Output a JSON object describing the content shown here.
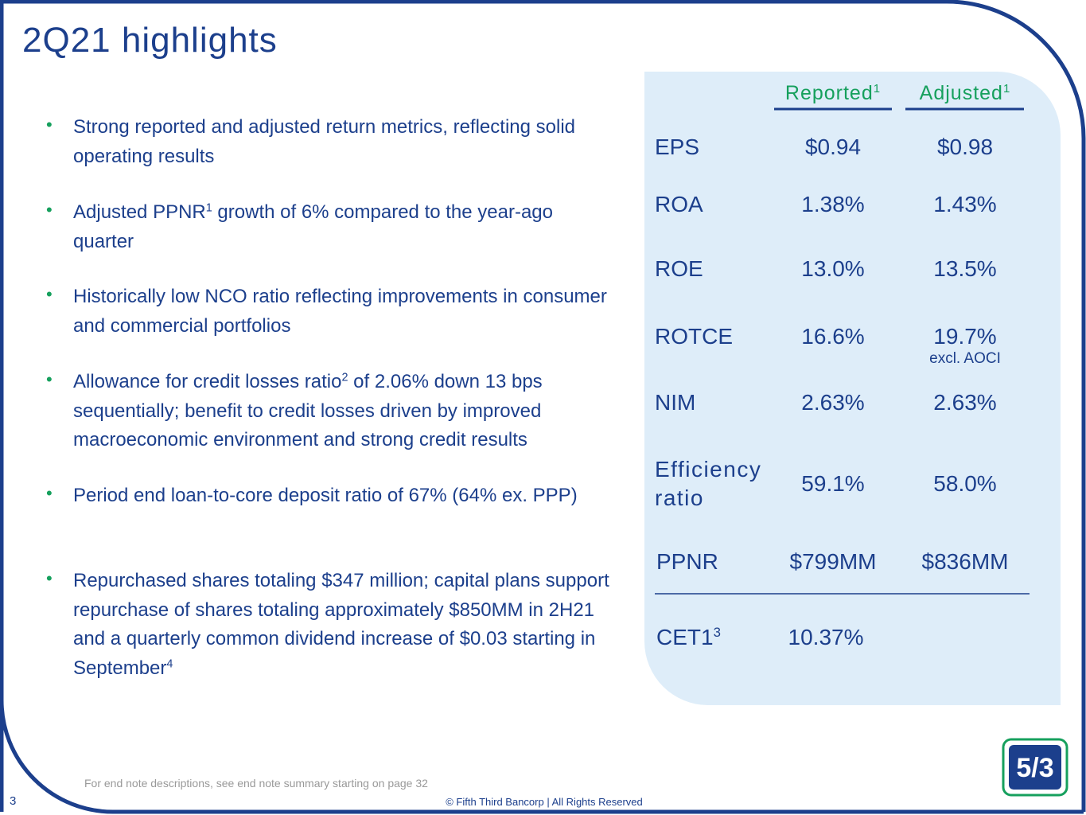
{
  "header": {
    "title": "2Q21 highlights"
  },
  "bullets": [
    [
      {
        "text": "Strong reported and adjusted return metrics, reflecting solid operating results"
      }
    ],
    [
      {
        "text": "Adjusted PPNR"
      },
      {
        "sup": "1"
      },
      {
        "text": " growth of 6% compared to the year-ago quarter"
      }
    ],
    [
      {
        "text": "Historically low NCO ratio reflecting improvements in consumer and commercial portfolios"
      }
    ],
    [
      {
        "text": "Allowance for credit losses ratio"
      },
      {
        "sup": "2"
      },
      {
        "text": " of 2.06% down 13 bps sequentially; benefit to credit losses driven by improved macroeconomic environment and strong credit results"
      }
    ],
    [
      {
        "text": "Period end loan-to-core deposit ratio of 67% (64% ex. PPP)"
      }
    ],
    [
      {
        "text": "Repurchased shares totaling $347 million; capital plans support repurchase of shares totaling approximately $850MM in 2H21 and a quarterly common dividend increase of $0.03 starting in September"
      },
      {
        "sup": "4"
      }
    ]
  ],
  "table": {
    "columns": [
      {
        "text": "Reported",
        "sup": "1"
      },
      {
        "text": "Adjusted",
        "sup": "1"
      }
    ],
    "rows": [
      {
        "label": "EPS",
        "reported": "$0.94",
        "adjusted": "$0.98"
      },
      {
        "label": "ROA",
        "reported": "1.38%",
        "adjusted": "1.43%"
      },
      {
        "label": "ROE",
        "reported": "13.0%",
        "adjusted": "13.5%"
      },
      {
        "label": "ROTCE",
        "reported": "16.6%",
        "adjusted": "19.7%",
        "note": "excl. AOCI"
      },
      {
        "label": "NIM",
        "reported": "2.63%",
        "adjusted": "2.63%"
      },
      {
        "label": "Efficiency ratio",
        "reported": "59.1%",
        "adjusted": "58.0%"
      },
      {
        "label": "PPNR",
        "reported": "$799MM",
        "adjusted": "$836MM"
      },
      {
        "label": "CET1",
        "label_sup": "3",
        "reported": "10.37%"
      }
    ]
  },
  "footer": {
    "endnote": "For end note descriptions, see end note summary starting on page 32",
    "page": "3",
    "copyright": "© Fifth Third Bancorp | All Rights Reserved"
  }
}
